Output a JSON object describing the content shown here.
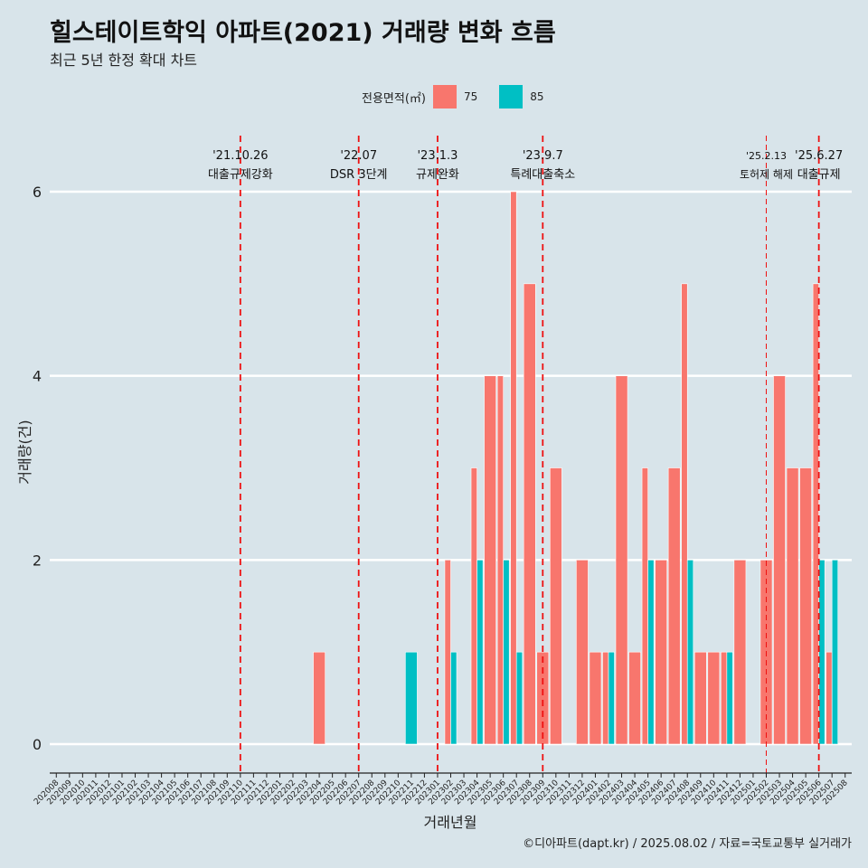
{
  "title": "힐스테이트학익 아파트(2021) 거래량 변화 흐름",
  "subtitle": "최근 5년 한정 확대 차트",
  "caption": "©디아파트(dapt.kr) / 2025.08.02 / 자료=국토교통부 실거래가",
  "legend": {
    "title": "전용면적(㎡)",
    "items": [
      {
        "label": "75",
        "color": "#f8766d"
      },
      {
        "label": "85",
        "color": "#00bfc4"
      }
    ]
  },
  "chart_data": {
    "type": "bar",
    "xlabel": "거래년월",
    "ylabel": "거래량(건)",
    "ylim": [
      0,
      6
    ],
    "yticks": [
      0,
      2,
      4,
      6
    ],
    "grid": true,
    "legend_position": "top",
    "categories": [
      "202008",
      "202009",
      "202010",
      "202011",
      "202012",
      "202101",
      "202102",
      "202103",
      "202104",
      "202105",
      "202106",
      "202107",
      "202108",
      "202109",
      "202110",
      "202111",
      "202112",
      "202201",
      "202202",
      "202203",
      "202204",
      "202205",
      "202206",
      "202207",
      "202208",
      "202209",
      "202210",
      "202211",
      "202212",
      "202301",
      "202302",
      "202303",
      "202304",
      "202305",
      "202306",
      "202307",
      "202308",
      "202309",
      "202310",
      "202311",
      "202312",
      "202401",
      "202402",
      "202403",
      "202404",
      "202405",
      "202406",
      "202407",
      "202408",
      "202409",
      "202410",
      "202411",
      "202412",
      "202501",
      "202502",
      "202503",
      "202504",
      "202505",
      "202506",
      "202507",
      "202508"
    ],
    "series": [
      {
        "name": "75",
        "color": "#f8766d",
        "values": [
          0,
          0,
          0,
          0,
          0,
          0,
          0,
          0,
          0,
          0,
          0,
          0,
          0,
          0,
          0,
          0,
          0,
          0,
          0,
          0,
          1,
          0,
          0,
          0,
          0,
          0,
          0,
          0,
          0,
          0,
          2,
          0,
          3,
          4,
          4,
          6,
          5,
          1,
          3,
          0,
          2,
          1,
          1,
          4,
          1,
          3,
          2,
          3,
          5,
          1,
          1,
          1,
          2,
          0,
          2,
          4,
          3,
          3,
          5,
          1,
          0
        ]
      },
      {
        "name": "85",
        "color": "#00bfc4",
        "values": [
          0,
          0,
          0,
          0,
          0,
          0,
          0,
          0,
          0,
          0,
          0,
          0,
          0,
          0,
          0,
          0,
          0,
          0,
          0,
          0,
          0,
          0,
          0,
          0,
          0,
          0,
          0,
          1,
          0,
          0,
          1,
          0,
          2,
          0,
          2,
          1,
          0,
          0,
          0,
          0,
          0,
          0,
          1,
          0,
          0,
          2,
          0,
          0,
          2,
          0,
          0,
          1,
          0,
          0,
          0,
          0,
          0,
          0,
          2,
          2,
          0
        ]
      }
    ],
    "annotations": [
      {
        "date_label": "'21.10.26",
        "text": "대출규제강화",
        "month": "202110"
      },
      {
        "date_label": "'22.07",
        "text": "DSR 3단계",
        "month": "202207"
      },
      {
        "date_label": "'23.1.3",
        "text": "규제완화",
        "month": "202301"
      },
      {
        "date_label": "'23.9.7",
        "text": "특례대출축소",
        "month": "202309"
      },
      {
        "date_label": "'25.2.13",
        "text": "토허제 해제",
        "month": "202502"
      },
      {
        "date_label": "'25.6.27",
        "text": "대출규제",
        "month": "202506"
      }
    ]
  }
}
